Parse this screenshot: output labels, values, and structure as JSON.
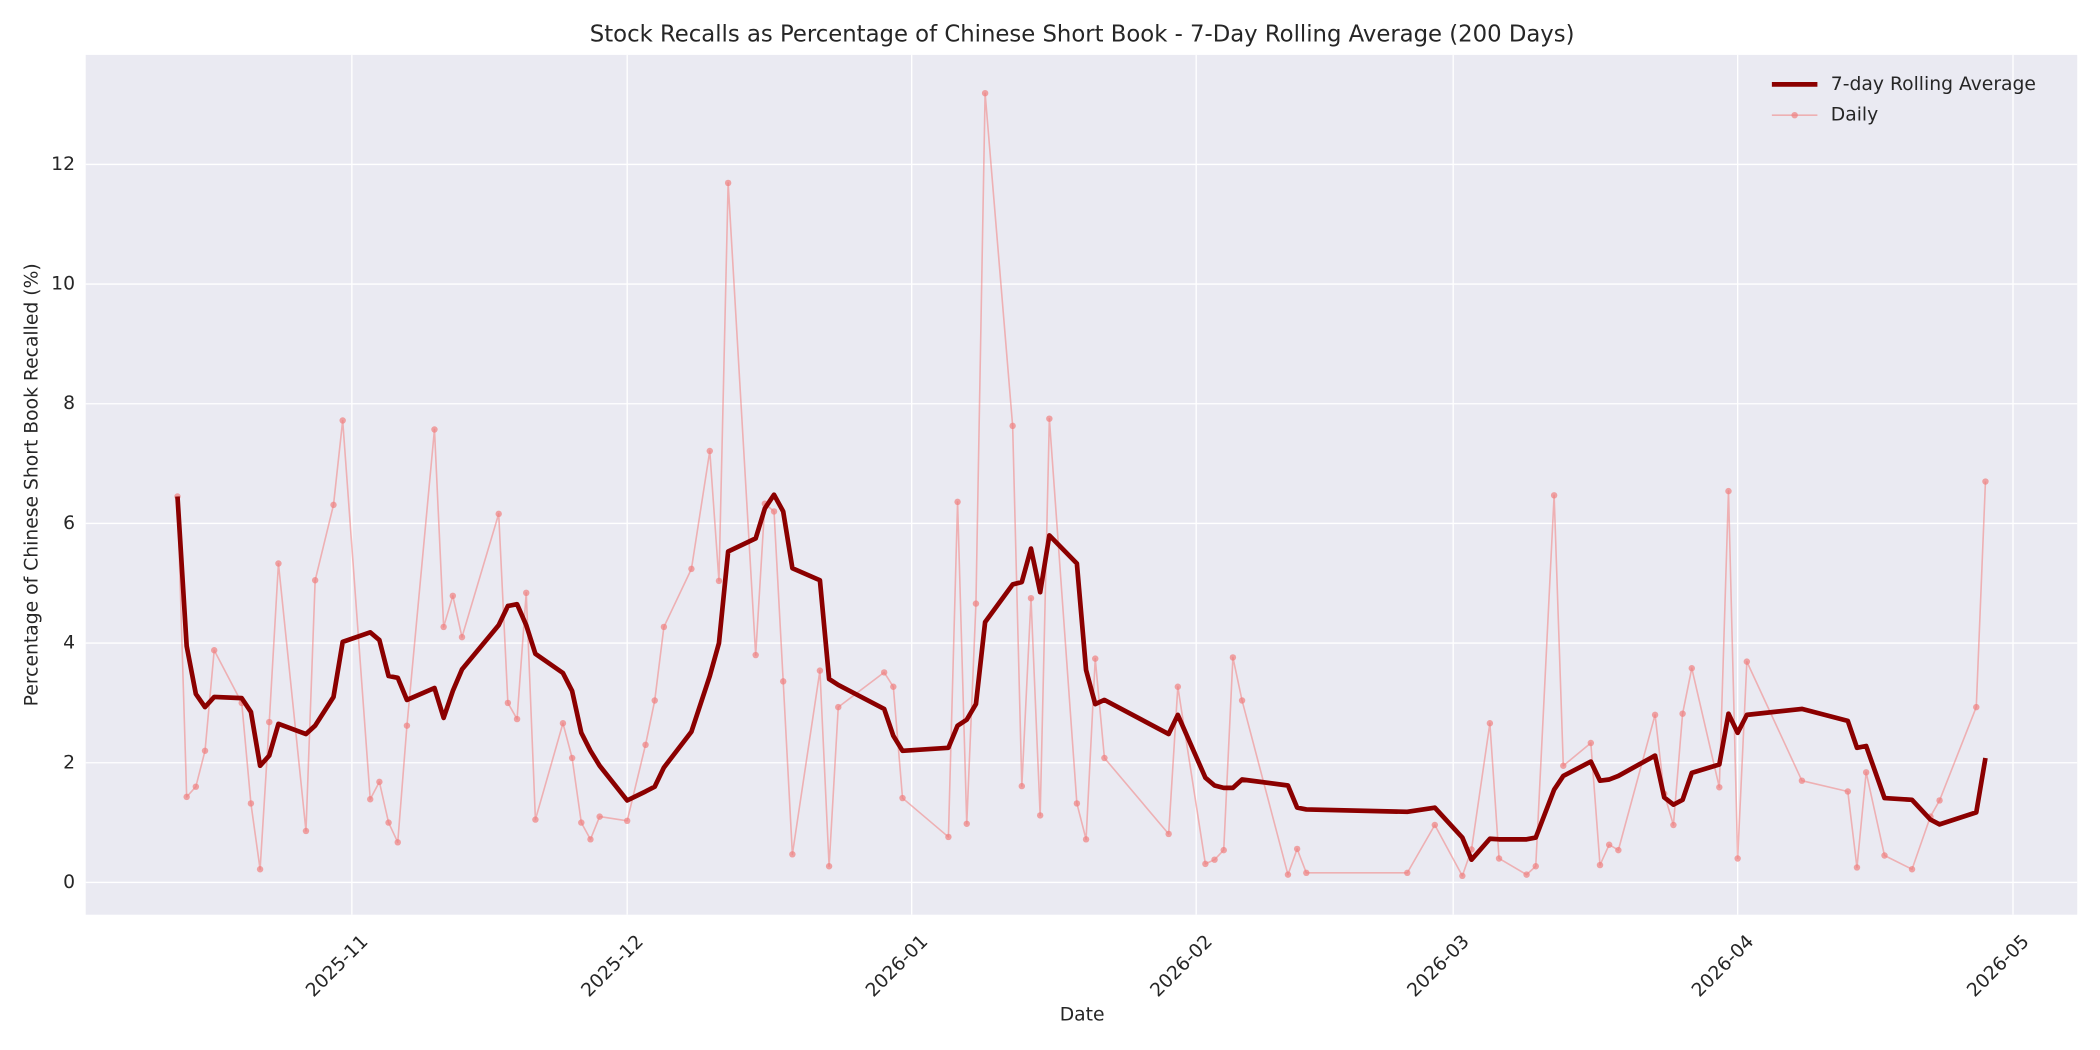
{
  "chart_data": {
    "type": "line",
    "title": "Stock Recalls as Percentage of Chinese Short Book - 7-Day Rolling Average (200 Days)",
    "x_label": "Date",
    "y_label": "Percentage of Chinese Short Book Recalled (%)",
    "x": [
      "2025-10-13",
      "2025-10-14",
      "2025-10-15",
      "2025-10-16",
      "2025-10-17",
      "2025-10-20",
      "2025-10-21",
      "2025-10-22",
      "2025-10-23",
      "2025-10-24",
      "2025-10-27",
      "2025-10-28",
      "2025-10-30",
      "2025-10-31",
      "2025-11-03",
      "2025-11-04",
      "2025-11-05",
      "2025-11-06",
      "2025-11-07",
      "2025-11-10",
      "2025-11-11",
      "2025-11-12",
      "2025-11-13",
      "2025-11-17",
      "2025-11-18",
      "2025-11-19",
      "2025-11-20",
      "2025-11-21",
      "2025-11-24",
      "2025-11-25",
      "2025-11-26",
      "2025-11-27",
      "2025-11-28",
      "2025-12-01",
      "2025-12-03",
      "2025-12-04",
      "2025-12-05",
      "2025-12-08",
      "2025-12-10",
      "2025-12-11",
      "2025-12-12",
      "2025-12-15",
      "2025-12-16",
      "2025-12-17",
      "2025-12-18",
      "2025-12-19",
      "2025-12-22",
      "2025-12-23",
      "2025-12-24",
      "2025-12-29",
      "2025-12-30",
      "2025-12-31",
      "2026-01-05",
      "2026-01-06",
      "2026-01-07",
      "2026-01-08",
      "2026-01-09",
      "2026-01-12",
      "2026-01-13",
      "2026-01-14",
      "2026-01-15",
      "2026-01-16",
      "2026-01-19",
      "2026-01-20",
      "2026-01-21",
      "2026-01-22",
      "2026-01-29",
      "2026-01-30",
      "2026-02-02",
      "2026-02-03",
      "2026-02-04",
      "2026-02-05",
      "2026-02-06",
      "2026-02-11",
      "2026-02-12",
      "2026-02-13",
      "2026-02-24",
      "2026-02-27",
      "2026-03-02",
      "2026-03-03",
      "2026-03-05",
      "2026-03-06",
      "2026-03-09",
      "2026-03-10",
      "2026-03-12",
      "2026-03-13",
      "2026-03-16",
      "2026-03-17",
      "2026-03-18",
      "2026-03-19",
      "2026-03-23",
      "2026-03-24",
      "2026-03-25",
      "2026-03-26",
      "2026-03-27",
      "2026-03-30",
      "2026-03-31",
      "2026-04-01",
      "2026-04-02",
      "2026-04-08",
      "2026-04-13",
      "2026-04-14",
      "2026-04-15",
      "2026-04-17",
      "2026-04-20",
      "2026-04-22",
      "2026-04-23",
      "2026-04-27",
      "2026-04-28"
    ],
    "series": [
      {
        "name": "7-day Rolling Average",
        "color": "#8b0000",
        "values": [
          6.45,
          3.95,
          3.15,
          2.93,
          3.1,
          3.08,
          2.85,
          1.95,
          2.12,
          2.65,
          2.48,
          2.62,
          3.1,
          4.02,
          4.18,
          4.05,
          3.45,
          3.42,
          3.05,
          3.25,
          2.75,
          3.2,
          3.56,
          4.3,
          4.62,
          4.65,
          4.3,
          3.82,
          3.5,
          3.2,
          2.5,
          2.2,
          1.95,
          1.37,
          1.52,
          1.6,
          1.92,
          2.52,
          3.45,
          4.0,
          5.53,
          5.75,
          6.25,
          6.48,
          6.2,
          5.25,
          5.05,
          3.4,
          3.3,
          2.9,
          2.45,
          2.2,
          2.25,
          2.62,
          2.72,
          2.98,
          4.35,
          4.98,
          5.02,
          5.58,
          4.85,
          5.8,
          5.33,
          3.55,
          2.98,
          3.05,
          2.48,
          2.8,
          1.75,
          1.62,
          1.58,
          1.58,
          1.72,
          1.62,
          1.25,
          1.22,
          1.18,
          1.25,
          0.75,
          0.38,
          0.73,
          0.72,
          0.72,
          0.75,
          1.55,
          1.78,
          2.02,
          1.7,
          1.72,
          1.78,
          2.12,
          1.42,
          1.3,
          1.38,
          1.83,
          1.97,
          2.82,
          2.5,
          2.8,
          2.9,
          2.7,
          2.25,
          2.28,
          1.41,
          1.38,
          1.05,
          0.97,
          1.17,
          2.08
        ]
      },
      {
        "name": "Daily",
        "color": "#f08080",
        "values": [
          6.45,
          1.43,
          1.6,
          2.2,
          3.88,
          3.0,
          1.32,
          0.22,
          2.68,
          5.33,
          0.86,
          5.05,
          6.31,
          7.72,
          1.39,
          1.68,
          1.0,
          0.67,
          2.62,
          7.57,
          4.27,
          4.79,
          4.1,
          6.16,
          3.0,
          2.73,
          4.84,
          1.05,
          2.66,
          2.08,
          1.0,
          0.72,
          1.1,
          1.03,
          2.3,
          3.04,
          4.27,
          5.24,
          7.21,
          5.04,
          11.69,
          3.8,
          6.33,
          6.2,
          3.36,
          0.47,
          3.54,
          0.27,
          2.93,
          3.51,
          3.27,
          1.41,
          0.76,
          6.36,
          0.98,
          4.66,
          13.19,
          7.63,
          1.61,
          4.75,
          1.12,
          7.75,
          1.32,
          0.72,
          3.74,
          2.08,
          0.81,
          3.27,
          0.31,
          0.38,
          0.54,
          3.76,
          3.04,
          0.13,
          0.56,
          0.16,
          0.16,
          0.96,
          0.11,
          0.55,
          2.66,
          0.4,
          0.13,
          0.27,
          6.47,
          1.95,
          2.33,
          0.29,
          0.63,
          0.54,
          2.8,
          1.48,
          0.96,
          2.82,
          3.58,
          1.59,
          6.54,
          0.4,
          3.69,
          1.7,
          1.52,
          0.25,
          1.84,
          0.45,
          0.22,
          1.1,
          1.37,
          2.93,
          6.7
        ]
      }
    ],
    "xlim": [
      "2025-10-03",
      "2026-05-08"
    ],
    "xticks": [
      {
        "value": "2025-11-01",
        "label": "2025-11"
      },
      {
        "value": "2025-12-01",
        "label": "2025-12"
      },
      {
        "value": "2026-01-01",
        "label": "2026-01"
      },
      {
        "value": "2026-02-01",
        "label": "2026-02"
      },
      {
        "value": "2026-03-01",
        "label": "2026-03"
      },
      {
        "value": "2026-04-01",
        "label": "2026-04"
      },
      {
        "value": "2026-05-01",
        "label": "2026-05"
      }
    ],
    "ylim": [
      -0.54,
      13.83
    ],
    "yticks": [
      0,
      2,
      4,
      6,
      8,
      10,
      12
    ],
    "grid": true,
    "legend": "upper right"
  }
}
